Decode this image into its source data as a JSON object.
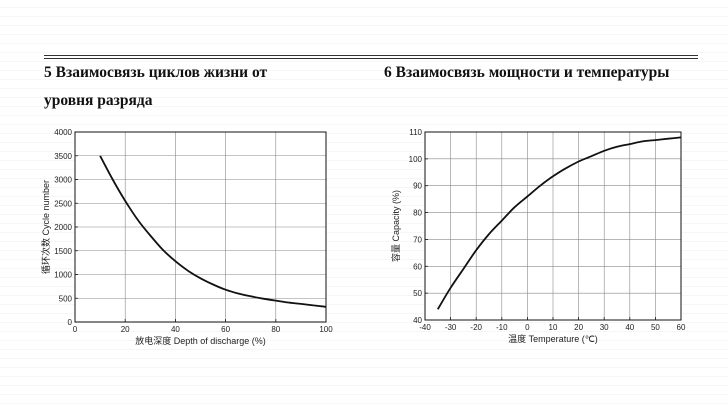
{
  "sections": [
    {
      "number": "5",
      "title_line1": "Взаимосвязь циклов жизни от",
      "title_line2": "уровня разряда"
    },
    {
      "number": "6",
      "title_line1": "Взаимосвязь мощности и температуры"
    }
  ],
  "chart_data": [
    {
      "type": "line",
      "title": "",
      "xlabel": "放电深度 Depth of discharge (%)",
      "ylabel": "循环次数 Cycle number",
      "xlim": [
        0,
        100
      ],
      "ylim": [
        0,
        4000
      ],
      "xticks": [
        0,
        20,
        40,
        60,
        80,
        100
      ],
      "yticks": [
        0,
        500,
        1000,
        1500,
        2000,
        2500,
        3000,
        3500,
        4000
      ],
      "grid": true,
      "series": [
        {
          "x": [
            10,
            15,
            20,
            25,
            30,
            35,
            40,
            45,
            50,
            55,
            60,
            65,
            70,
            75,
            80,
            85,
            90,
            95,
            100
          ],
          "y": [
            3500,
            3000,
            2550,
            2150,
            1820,
            1520,
            1280,
            1080,
            920,
            790,
            680,
            600,
            540,
            490,
            450,
            410,
            380,
            350,
            320
          ]
        }
      ]
    },
    {
      "type": "line",
      "title": "",
      "xlabel": "温度 Temperature (℃)",
      "ylabel": "容量 Capacity (%)",
      "xlim": [
        -40,
        60
      ],
      "ylim": [
        40,
        110
      ],
      "xticks": [
        -40,
        -30,
        -20,
        -10,
        0,
        10,
        20,
        30,
        40,
        50,
        60
      ],
      "yticks": [
        40,
        50,
        60,
        70,
        80,
        90,
        100,
        110
      ],
      "grid": true,
      "series": [
        {
          "x": [
            -35,
            -30,
            -25,
            -20,
            -15,
            -10,
            -5,
            0,
            5,
            10,
            15,
            20,
            25,
            30,
            35,
            40,
            45,
            50,
            55,
            60
          ],
          "y": [
            44,
            52,
            59,
            66,
            72,
            77,
            82,
            86,
            90,
            93.5,
            96.5,
            99,
            101,
            103,
            104.5,
            105.5,
            106.5,
            107,
            107.5,
            108
          ]
        }
      ]
    }
  ]
}
